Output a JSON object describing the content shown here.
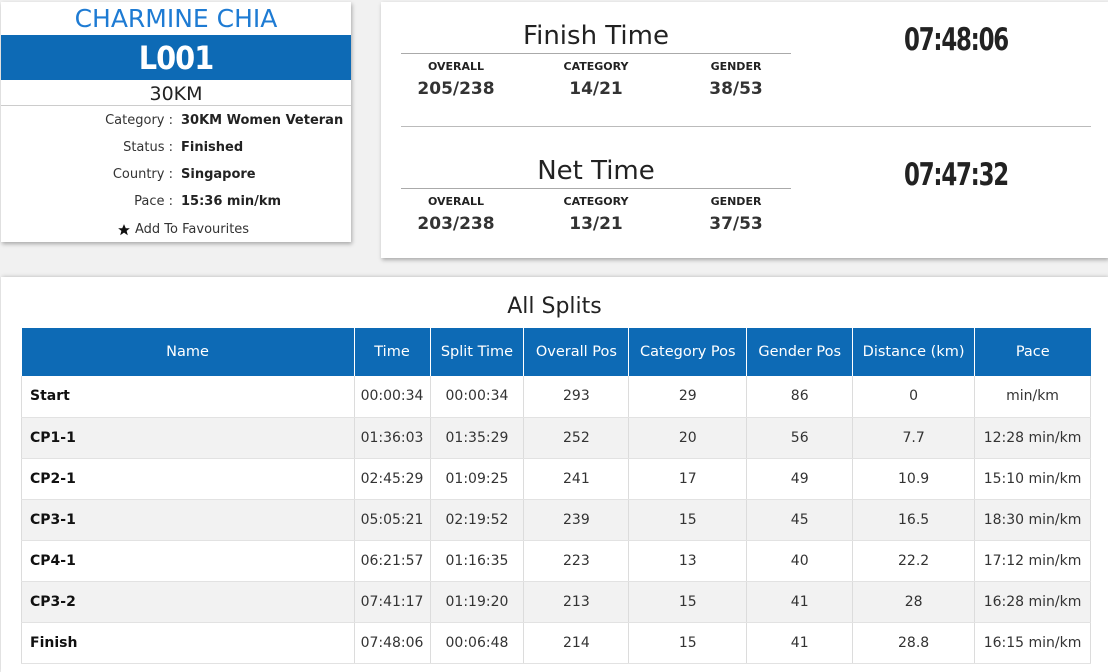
{
  "athlete": {
    "name": "CHARMINE CHIA",
    "bib": "L001",
    "distance": "30KM",
    "info": [
      {
        "label": "Category :",
        "value": "30KM Women Veteran"
      },
      {
        "label": "Status :",
        "value": "Finished"
      },
      {
        "label": "Country :",
        "value": "Singapore"
      },
      {
        "label": "Pace :",
        "value": "15:36 min/km"
      }
    ],
    "favourite_label": "Add To Favourites"
  },
  "finish_time": {
    "title": "Finish Time",
    "time": "07:48:06",
    "positions": [
      {
        "label": "OVERALL",
        "value": "205/238"
      },
      {
        "label": "CATEGORY",
        "value": "14/21"
      },
      {
        "label": "GENDER",
        "value": "38/53"
      }
    ]
  },
  "net_time": {
    "title": "Net Time",
    "time": "07:47:32",
    "positions": [
      {
        "label": "OVERALL",
        "value": "203/238"
      },
      {
        "label": "CATEGORY",
        "value": "13/21"
      },
      {
        "label": "GENDER",
        "value": "37/53"
      }
    ]
  },
  "splits": {
    "title": "All Splits",
    "columns": [
      "Name",
      "Time",
      "Split Time",
      "Overall Pos",
      "Category Pos",
      "Gender Pos",
      "Distance (km)",
      "Pace"
    ],
    "rows": [
      [
        "Start",
        "00:00:34",
        "00:00:34",
        "293",
        "29",
        "86",
        "0",
        "min/km"
      ],
      [
        "CP1-1",
        "01:36:03",
        "01:35:29",
        "252",
        "20",
        "56",
        "7.7",
        "12:28 min/km"
      ],
      [
        "CP2-1",
        "02:45:29",
        "01:09:25",
        "241",
        "17",
        "49",
        "10.9",
        "15:10 min/km"
      ],
      [
        "CP3-1",
        "05:05:21",
        "02:19:52",
        "239",
        "15",
        "45",
        "16.5",
        "18:30 min/km"
      ],
      [
        "CP4-1",
        "06:21:57",
        "01:16:35",
        "223",
        "13",
        "40",
        "22.2",
        "17:12 min/km"
      ],
      [
        "CP3-2",
        "07:41:17",
        "01:19:20",
        "213",
        "15",
        "41",
        "28",
        "16:28 min/km"
      ],
      [
        "Finish",
        "07:48:06",
        "00:06:48",
        "214",
        "15",
        "41",
        "28.8",
        "16:15 min/km"
      ]
    ]
  },
  "colors": {
    "accent": "#0d6ab5",
    "name": "#1e7bd3"
  },
  "icons": {
    "favourite": "star-icon"
  }
}
